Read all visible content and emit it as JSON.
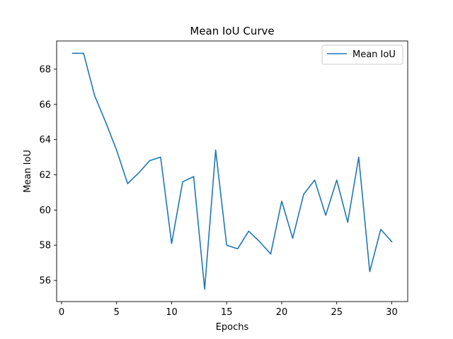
{
  "chart_data": {
    "type": "line",
    "title": "Mean IoU Curve",
    "xlabel": "Epochs",
    "ylabel": "Mean IoU",
    "xlim": [
      -0.45,
      31.45
    ],
    "ylim": [
      54.8,
      69.6
    ],
    "xticks": [
      0,
      5,
      10,
      15,
      20,
      25,
      30
    ],
    "yticks": [
      56,
      58,
      60,
      62,
      64,
      66,
      68
    ],
    "grid": false,
    "legend_position": "top-right",
    "series": [
      {
        "name": "Mean IoU",
        "color": "#1f77b4",
        "x": [
          1,
          2,
          3,
          4,
          5,
          6,
          7,
          8,
          9,
          10,
          11,
          12,
          13,
          14,
          15,
          16,
          17,
          18,
          19,
          20,
          21,
          22,
          23,
          24,
          25,
          26,
          27,
          28,
          29,
          30
        ],
        "values": [
          68.9,
          68.9,
          66.5,
          65.0,
          63.4,
          61.5,
          62.1,
          62.8,
          63.0,
          58.1,
          61.6,
          61.9,
          55.5,
          63.4,
          58.0,
          57.8,
          58.8,
          58.2,
          57.5,
          60.5,
          58.4,
          60.9,
          61.7,
          59.7,
          61.7,
          59.3,
          63.0,
          56.5,
          58.9,
          58.2
        ]
      }
    ]
  }
}
